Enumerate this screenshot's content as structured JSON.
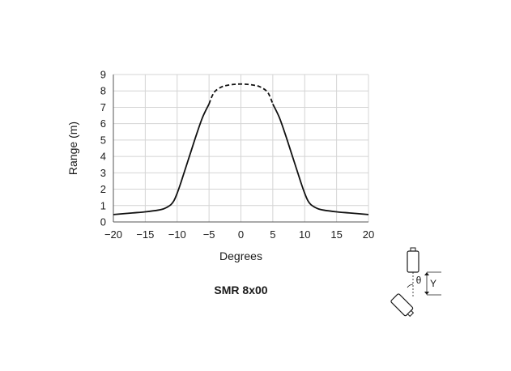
{
  "chart_data": {
    "type": "line",
    "title": "SMR 8x00",
    "xlabel": "Degrees",
    "ylabel": "Range (m)",
    "xlim": [
      -20,
      20
    ],
    "ylim": [
      0,
      9
    ],
    "x_ticks": [
      "−20",
      "−15",
      "−10",
      "−5",
      "0",
      "5",
      "10",
      "15",
      "20"
    ],
    "y_ticks": [
      "0",
      "1",
      "2",
      "3",
      "4",
      "5",
      "6",
      "7",
      "8",
      "9"
    ],
    "grid": true,
    "series": [
      {
        "style": "solid",
        "x": [
          -20,
          -17,
          -15,
          -13,
          -12,
          -11,
          -10.5,
          -10,
          -9.5,
          -9,
          -8,
          -7,
          -6,
          -5
        ],
        "y": [
          0.45,
          0.55,
          0.62,
          0.72,
          0.82,
          1.05,
          1.3,
          1.75,
          2.3,
          2.9,
          4.1,
          5.3,
          6.4,
          7.2
        ]
      },
      {
        "style": "dashed",
        "x": [
          -5,
          -4.5,
          -4,
          -3,
          -2,
          -1,
          0,
          1,
          2,
          3,
          4,
          4.5,
          5
        ],
        "y": [
          7.2,
          7.7,
          8.0,
          8.25,
          8.35,
          8.4,
          8.42,
          8.4,
          8.35,
          8.25,
          8.0,
          7.7,
          7.2
        ]
      },
      {
        "style": "solid",
        "x": [
          5,
          6,
          7,
          8,
          9,
          9.5,
          10,
          10.5,
          11,
          12,
          13,
          15,
          17,
          20
        ],
        "y": [
          7.2,
          6.4,
          5.3,
          4.1,
          2.9,
          2.3,
          1.75,
          1.3,
          1.05,
          0.82,
          0.72,
          0.62,
          0.55,
          0.45
        ]
      }
    ]
  },
  "diagram": {
    "angle_symbol": "θ",
    "y_symbol": "Y"
  }
}
